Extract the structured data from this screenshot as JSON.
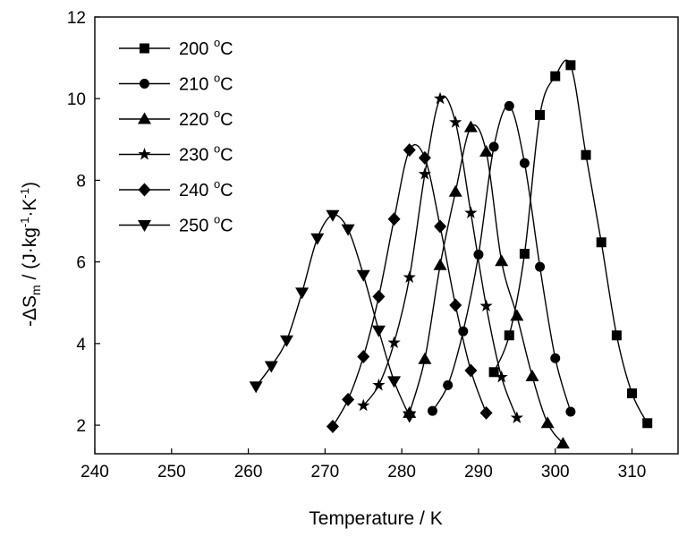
{
  "chart_data": {
    "type": "line",
    "xlabel": "Temperature / K",
    "ylabel": {
      "delta": "-ΔS",
      "sub": "m",
      "unit_start": " / (J·kg",
      "exp1": "-1",
      "unit_mid": "·K",
      "exp2": "-1",
      "unit_end": ")"
    },
    "xlim": [
      240,
      316
    ],
    "ylim": [
      1.3,
      12
    ],
    "xticks": [
      "240",
      "250",
      "260",
      "270",
      "280",
      "290",
      "300",
      "310"
    ],
    "yticks": [
      "2",
      "4",
      "6",
      "8",
      "10",
      "12"
    ],
    "grid": false,
    "legend_position": "top-left",
    "series": [
      {
        "name": "200 °C",
        "label_value": "200",
        "label_unit": "C",
        "label_degree": "o",
        "marker": "square",
        "x": [
          292,
          294,
          296,
          298,
          300,
          302,
          304,
          306,
          308,
          310,
          312
        ],
        "y": [
          3.3,
          4.2,
          6.2,
          9.6,
          10.55,
          10.82,
          8.62,
          6.48,
          4.2,
          2.78,
          2.05
        ]
      },
      {
        "name": "210 °C",
        "label_value": "210",
        "label_unit": "C",
        "label_degree": "o",
        "marker": "circle",
        "x": [
          284,
          286,
          288,
          290,
          292,
          294,
          296,
          298,
          300,
          302
        ],
        "y": [
          2.35,
          2.98,
          4.3,
          6.18,
          8.82,
          9.82,
          8.42,
          5.88,
          3.64,
          2.33
        ]
      },
      {
        "name": "220 °C",
        "label_value": "220",
        "label_unit": "C",
        "label_degree": "o",
        "marker": "triangle-up",
        "x": [
          281,
          283,
          285,
          287,
          289,
          291,
          293,
          295,
          297,
          299,
          301
        ],
        "y": [
          2.3,
          3.62,
          5.92,
          7.72,
          9.3,
          8.7,
          6.02,
          4.68,
          3.2,
          2.05,
          1.55
        ]
      },
      {
        "name": "230 °C",
        "label_value": "230",
        "label_unit": "C",
        "label_degree": "o",
        "marker": "star",
        "x": [
          275,
          277,
          279,
          281,
          283,
          285,
          287,
          289,
          291,
          293,
          295
        ],
        "y": [
          2.48,
          2.98,
          4.02,
          5.62,
          8.15,
          10.0,
          9.42,
          7.2,
          4.92,
          3.18,
          2.18
        ]
      },
      {
        "name": "240 °C",
        "label_value": "240",
        "label_unit": "C",
        "label_degree": "o",
        "marker": "diamond",
        "x": [
          271,
          273,
          275,
          277,
          279,
          281,
          283,
          285,
          287,
          289,
          291
        ],
        "y": [
          1.97,
          2.63,
          3.68,
          5.15,
          7.05,
          8.74,
          8.55,
          6.87,
          4.94,
          3.34,
          2.3
        ]
      },
      {
        "name": "250 °C",
        "label_value": "250",
        "label_unit": "C",
        "label_degree": "o",
        "marker": "triangle-down",
        "x": [
          261,
          263,
          265,
          267,
          269,
          271,
          273,
          275,
          277,
          279,
          281
        ],
        "y": [
          2.95,
          3.45,
          4.08,
          5.25,
          6.58,
          7.15,
          6.8,
          5.68,
          4.32,
          3.08,
          2.22
        ]
      }
    ]
  }
}
